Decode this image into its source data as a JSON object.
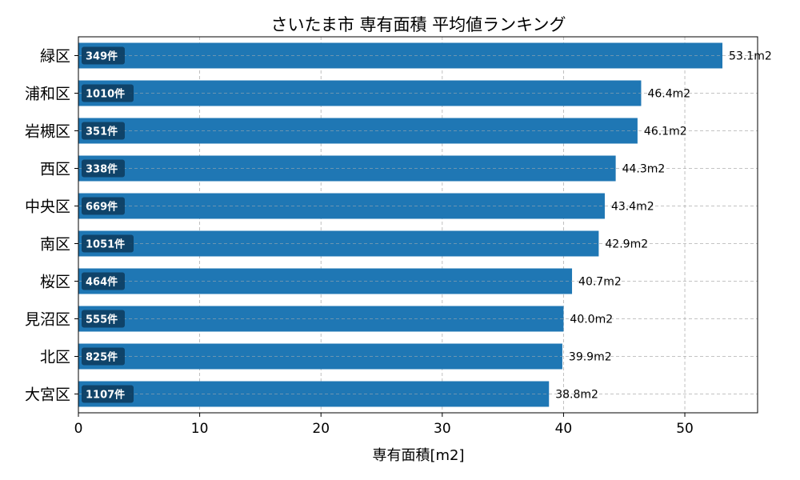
{
  "chart_data": {
    "type": "bar",
    "orientation": "horizontal",
    "title": "さいたま市 専有面積 平均値ランキング",
    "xlabel": "専有面積[m2]",
    "ylabel": "",
    "xlim": [
      0,
      56
    ],
    "xticks": [
      0,
      10,
      20,
      30,
      40,
      50
    ],
    "grid": true,
    "bar_color": "#1f77b4",
    "badge_color": "#0d3a5c",
    "categories": [
      "緑区",
      "浦和区",
      "岩槻区",
      "西区",
      "中央区",
      "南区",
      "桜区",
      "見沼区",
      "北区",
      "大宮区"
    ],
    "values": [
      53.1,
      46.4,
      46.1,
      44.3,
      43.4,
      42.9,
      40.7,
      40.0,
      39.9,
      38.8
    ],
    "value_labels": [
      "53.1m2",
      "46.4m2",
      "46.1m2",
      "44.3m2",
      "43.4m2",
      "42.9m2",
      "40.7m2",
      "40.0m2",
      "39.9m2",
      "38.8m2"
    ],
    "counts": [
      "349件",
      "1010件",
      "351件",
      "338件",
      "669件",
      "1051件",
      "464件",
      "555件",
      "825件",
      "1107件"
    ]
  }
}
